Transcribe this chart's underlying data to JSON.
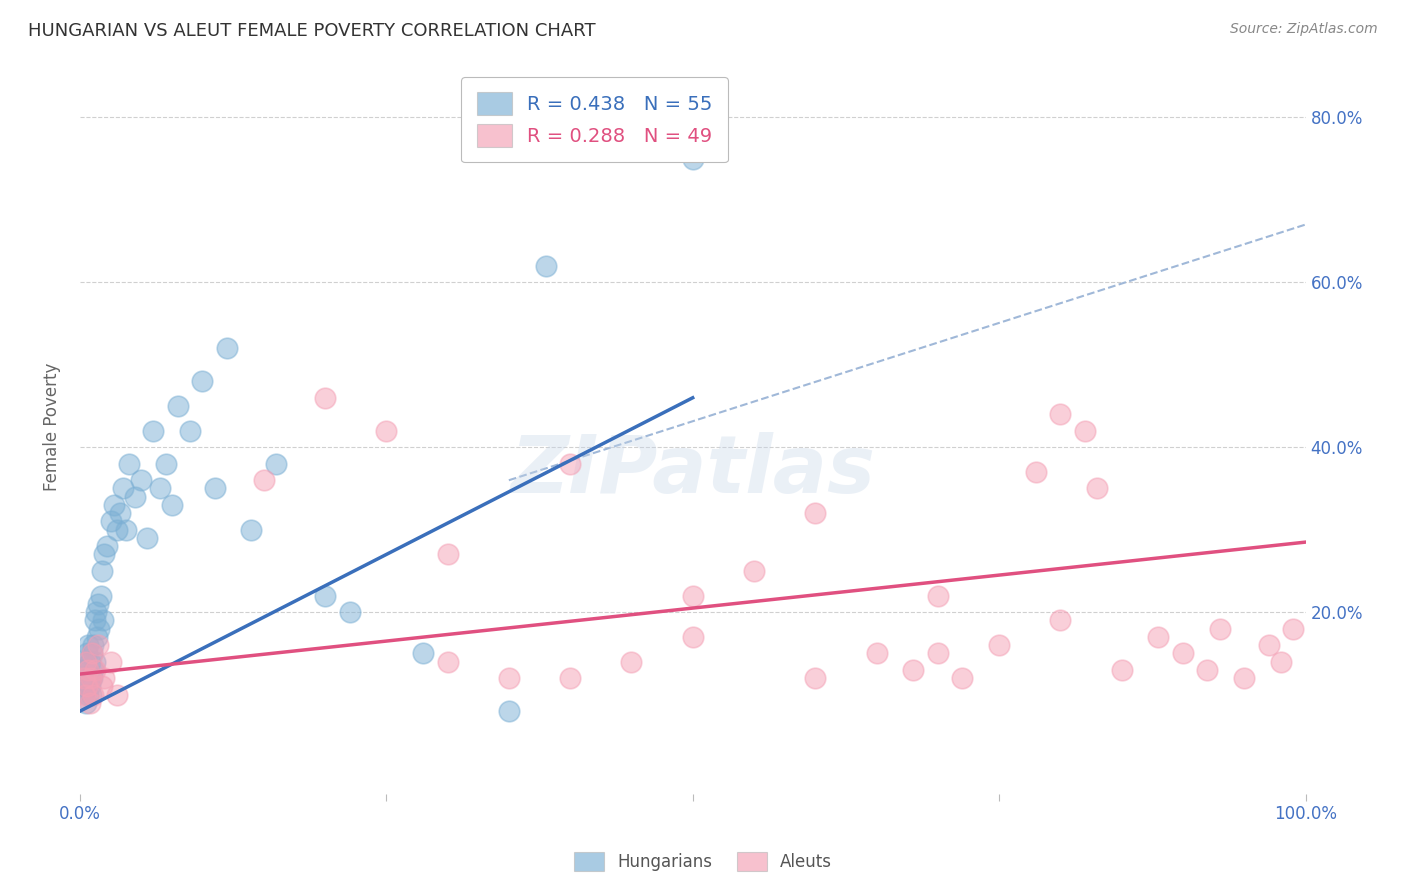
{
  "title": "HUNGARIAN VS ALEUT FEMALE POVERTY CORRELATION CHART",
  "source": "Source: ZipAtlas.com",
  "ylabel": "Female Poverty",
  "watermark": "ZIPatlas",
  "xlim": [
    0,
    1.0
  ],
  "ylim": [
    -0.02,
    0.87
  ],
  "ytick_labels": [
    "20.0%",
    "40.0%",
    "60.0%",
    "80.0%"
  ],
  "ytick_positions": [
    0.2,
    0.4,
    0.6,
    0.8
  ],
  "hungarian_color": "#7bafd4",
  "aleut_color": "#f4a0b5",
  "hungarian_R": 0.438,
  "hungarian_N": 55,
  "aleut_R": 0.288,
  "aleut_N": 49,
  "hungarian_line_x": [
    0.0,
    0.5
  ],
  "hungarian_line_y": [
    0.08,
    0.46
  ],
  "aleut_line_x": [
    0.0,
    1.0
  ],
  "aleut_line_y": [
    0.125,
    0.285
  ],
  "dashed_line_x": [
    0.35,
    1.0
  ],
  "dashed_line_y": [
    0.36,
    0.67
  ],
  "hungarian_line_color": "#3a6fbb",
  "aleut_line_color": "#e05080",
  "dashed_line_color": "#a0b8d8",
  "background_color": "#ffffff",
  "grid_color": "#d0d0d0",
  "title_color": "#333333",
  "right_label_color": "#4472c4",
  "hun_x": [
    0.003,
    0.004,
    0.005,
    0.005,
    0.006,
    0.006,
    0.007,
    0.007,
    0.007,
    0.008,
    0.008,
    0.009,
    0.009,
    0.01,
    0.01,
    0.011,
    0.011,
    0.012,
    0.012,
    0.013,
    0.014,
    0.015,
    0.016,
    0.017,
    0.018,
    0.019,
    0.02,
    0.022,
    0.025,
    0.028,
    0.03,
    0.033,
    0.035,
    0.038,
    0.04,
    0.045,
    0.05,
    0.055,
    0.06,
    0.065,
    0.07,
    0.075,
    0.08,
    0.09,
    0.1,
    0.11,
    0.12,
    0.14,
    0.16,
    0.2,
    0.22,
    0.28,
    0.35,
    0.38,
    0.5
  ],
  "hun_y": [
    0.13,
    0.11,
    0.14,
    0.09,
    0.12,
    0.15,
    0.1,
    0.13,
    0.16,
    0.11,
    0.14,
    0.12,
    0.1,
    0.15,
    0.12,
    0.16,
    0.13,
    0.19,
    0.14,
    0.2,
    0.17,
    0.21,
    0.18,
    0.22,
    0.25,
    0.19,
    0.27,
    0.28,
    0.31,
    0.33,
    0.3,
    0.32,
    0.35,
    0.3,
    0.38,
    0.34,
    0.36,
    0.29,
    0.42,
    0.35,
    0.38,
    0.33,
    0.45,
    0.42,
    0.48,
    0.35,
    0.52,
    0.3,
    0.38,
    0.22,
    0.2,
    0.15,
    0.08,
    0.62,
    0.75
  ],
  "aleut_x": [
    0.003,
    0.004,
    0.005,
    0.006,
    0.007,
    0.008,
    0.009,
    0.01,
    0.011,
    0.012,
    0.015,
    0.018,
    0.02,
    0.025,
    0.03,
    0.15,
    0.2,
    0.25,
    0.3,
    0.35,
    0.4,
    0.45,
    0.5,
    0.55,
    0.6,
    0.65,
    0.68,
    0.7,
    0.72,
    0.75,
    0.78,
    0.8,
    0.82,
    0.83,
    0.85,
    0.88,
    0.9,
    0.92,
    0.93,
    0.95,
    0.97,
    0.98,
    0.99,
    0.3,
    0.4,
    0.5,
    0.6,
    0.7,
    0.8
  ],
  "aleut_y": [
    0.12,
    0.1,
    0.14,
    0.11,
    0.13,
    0.09,
    0.12,
    0.15,
    0.1,
    0.13,
    0.16,
    0.11,
    0.12,
    0.14,
    0.1,
    0.36,
    0.46,
    0.42,
    0.14,
    0.12,
    0.38,
    0.14,
    0.17,
    0.25,
    0.12,
    0.15,
    0.13,
    0.22,
    0.12,
    0.16,
    0.37,
    0.44,
    0.42,
    0.35,
    0.13,
    0.17,
    0.15,
    0.13,
    0.18,
    0.12,
    0.16,
    0.14,
    0.18,
    0.27,
    0.12,
    0.22,
    0.32,
    0.15,
    0.19
  ]
}
